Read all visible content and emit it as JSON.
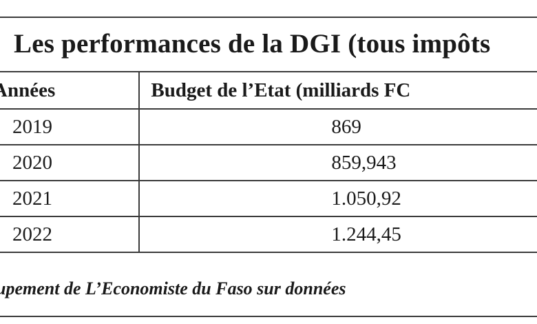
{
  "title": "Les performances de la DGI (tous impôts",
  "table": {
    "headers": [
      "Années",
      "Budget de l’Etat (milliards FC"
    ],
    "rows": [
      {
        "year": "2019",
        "budget": "869"
      },
      {
        "year": "2020",
        "budget": "859,943"
      },
      {
        "year": "2021",
        "budget": "1.050,92"
      },
      {
        "year": "2022",
        "budget": "1.244,45"
      }
    ]
  },
  "source": "upement de L’Economiste du Faso sur données"
}
